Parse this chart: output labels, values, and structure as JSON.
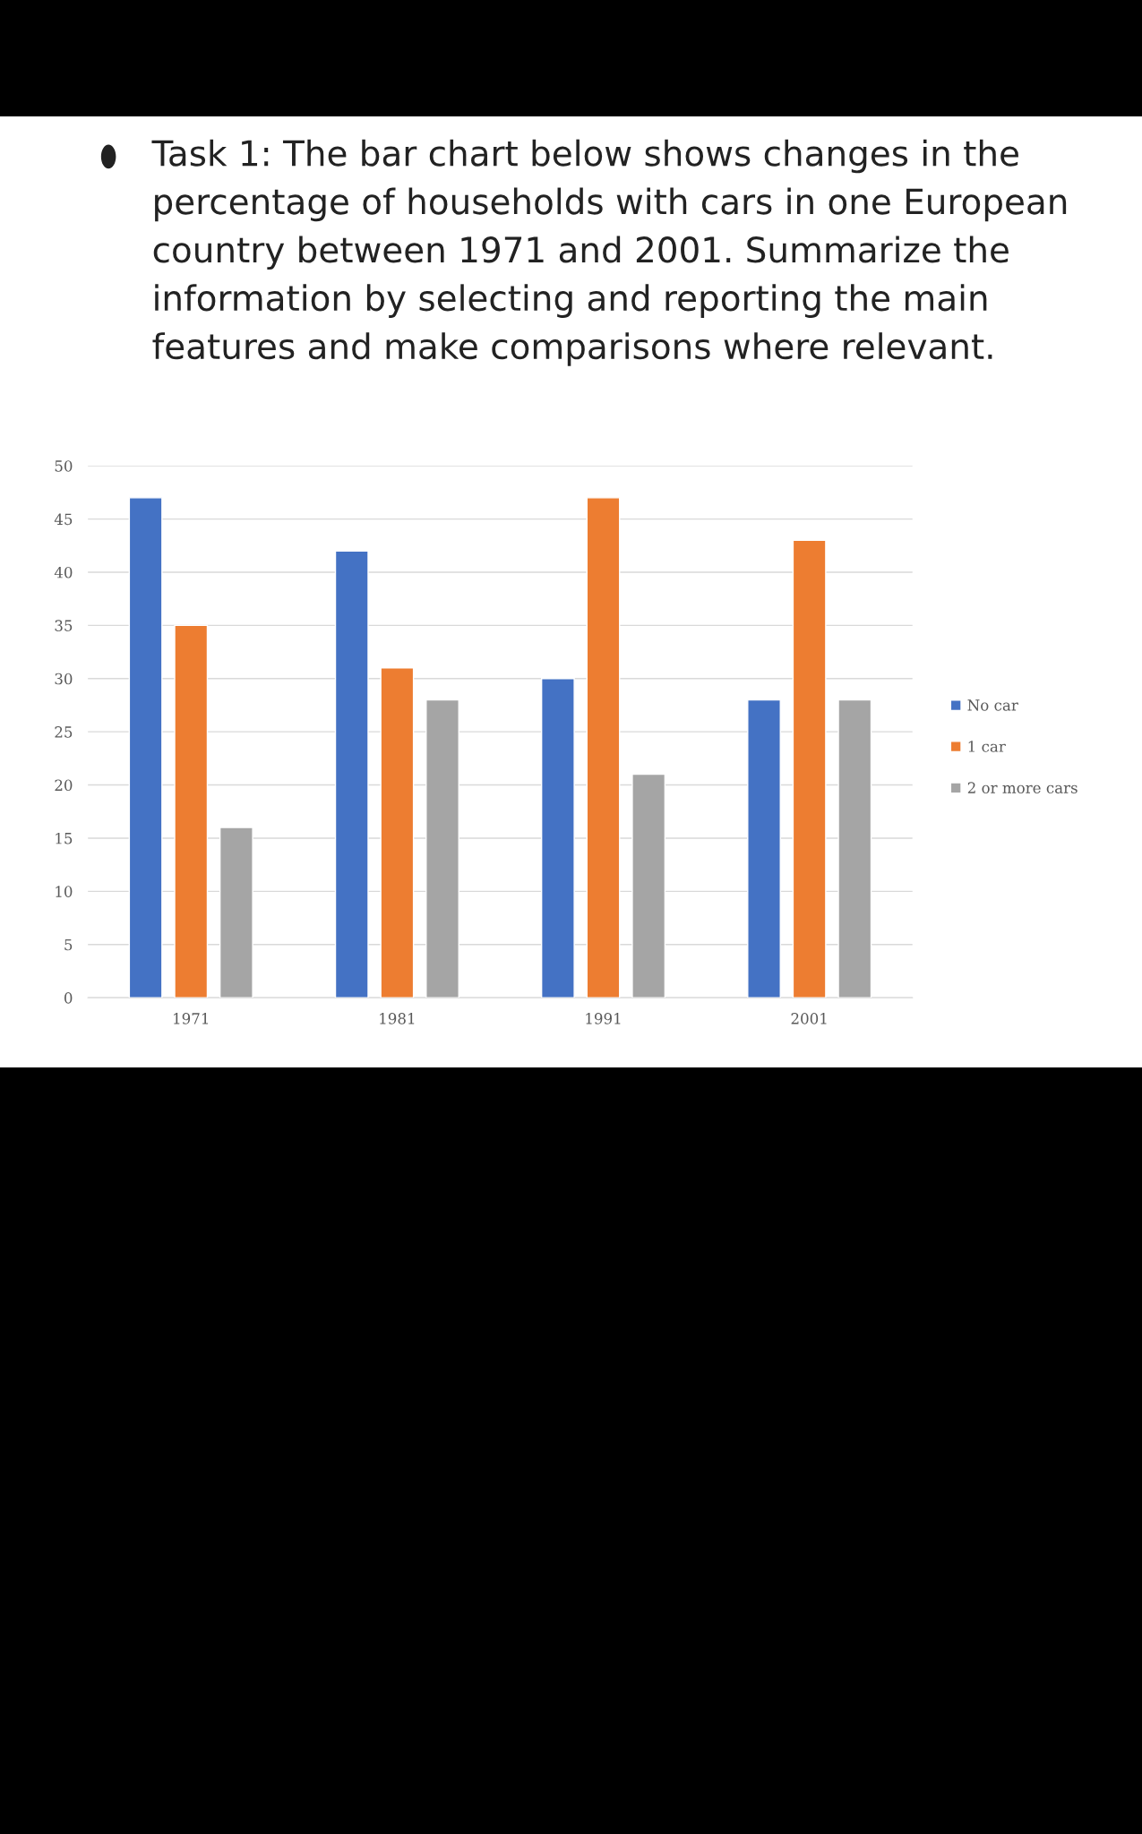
{
  "chart_data": {
    "type": "bar",
    "title": "Task 1: The bar chart below shows changes in the percentage of households with cars in one European country between 1971 and 2001. Summarize the information by selecting and reporting the main features and make comparisons where relevant.",
    "categories": [
      "1971",
      "1981",
      "1991",
      "2001"
    ],
    "series": [
      {
        "name": "No car",
        "color": "#4472c4",
        "values": [
          47,
          42,
          30,
          28
        ]
      },
      {
        "name": "1 car",
        "color": "#ed7d31",
        "values": [
          35,
          31,
          47,
          43
        ]
      },
      {
        "name": "2 or more cars",
        "color": "#a5a5a5",
        "values": [
          16,
          28,
          21,
          28
        ]
      }
    ],
    "ylim": [
      0,
      50
    ],
    "yticks": [
      0,
      5,
      10,
      15,
      20,
      25,
      30,
      35,
      40,
      45,
      50
    ],
    "grid": "y",
    "legend": "right"
  }
}
